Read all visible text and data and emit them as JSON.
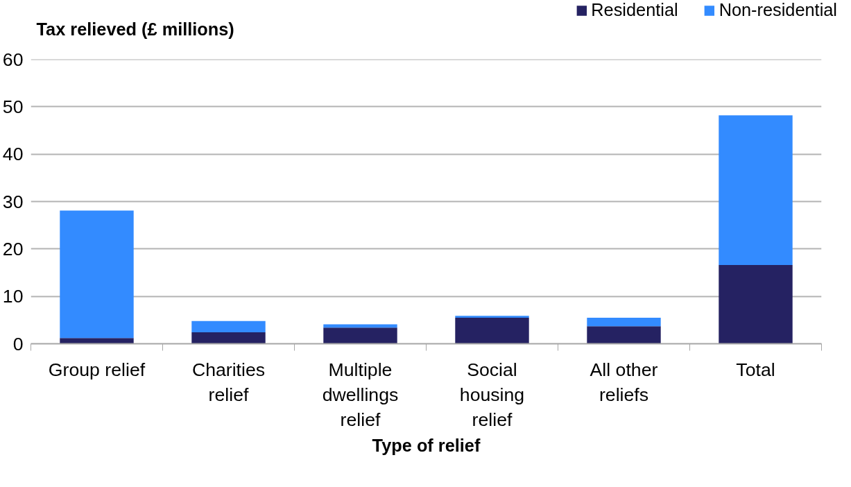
{
  "chart_data": {
    "type": "bar",
    "stacked": true,
    "ylabel": "Tax relieved (£ millions)",
    "xlabel": "Type of relief",
    "categories": [
      "Group relief",
      "Charities relief",
      "Multiple dwellings relief",
      "Social housing relief",
      "All other reliefs",
      "Total"
    ],
    "series": [
      {
        "name": "Residential",
        "color": "#252262",
        "values": [
          1.2,
          2.4,
          3.4,
          5.5,
          3.7,
          16.6
        ]
      },
      {
        "name": "Non-residential",
        "color": "#338bff",
        "values": [
          26.9,
          2.4,
          0.7,
          0.4,
          1.8,
          31.6
        ]
      }
    ],
    "ylim": [
      0,
      60
    ],
    "yticks": [
      0,
      10,
      20,
      30,
      40,
      50,
      60
    ],
    "grid": "y",
    "legend": "top right"
  }
}
